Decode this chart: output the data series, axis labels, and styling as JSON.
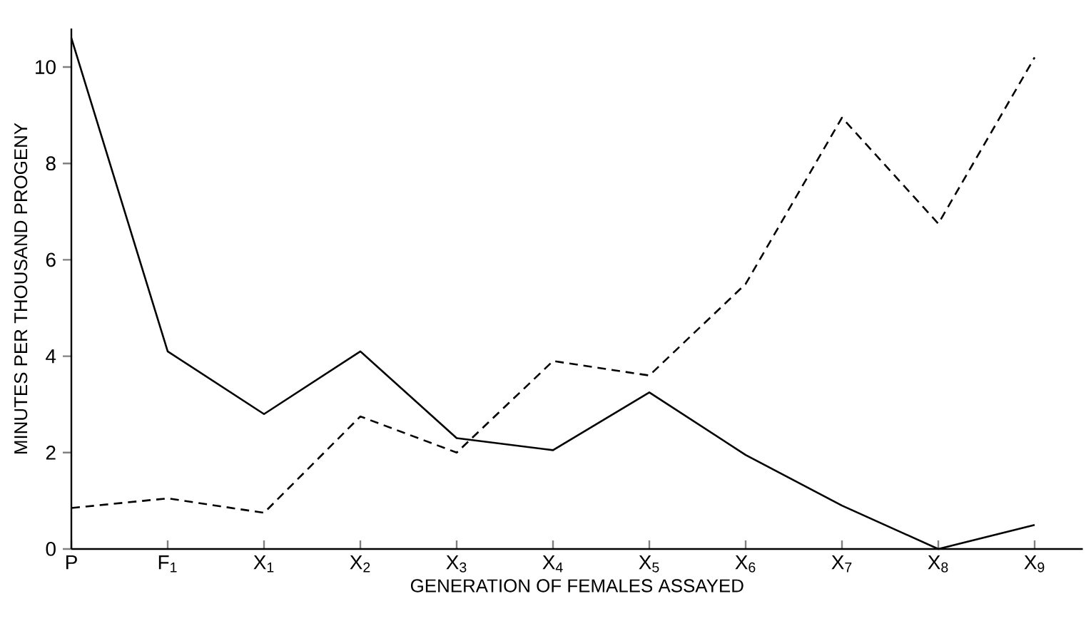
{
  "chart_data": {
    "type": "line",
    "xlabel": "GENERATION OF FEMALES ASSAYED",
    "ylabel": "MINUTES PER THOUSAND PROGENY",
    "categories": [
      "P",
      "F$_{1}$",
      "X$_{1}$",
      "X$_{2}$",
      "X$_{3}$",
      "X$_{4}$",
      "X$_{5}$",
      "X$_{6}$",
      "X$_{7}$",
      "X$_{8}$",
      "X$_{9}$"
    ],
    "series": [
      {
        "color": "#000000",
        "line_style": "solid",
        "values": [
          10.6,
          4.1,
          2.8,
          4.1,
          2.3,
          2.05,
          3.25,
          1.95,
          0.9,
          0,
          0.5
        ]
      },
      {
        "color": "#000000",
        "line_style": "dashed",
        "values": [
          0.85,
          1.05,
          0.75,
          2.75,
          2.0,
          3.9,
          3.6,
          5.5,
          8.95,
          6.75,
          10.2
        ]
      }
    ],
    "ylim": [
      0,
      10.8
    ],
    "yticks": [
      0,
      2,
      4,
      6,
      8,
      10
    ],
    "grid": false,
    "marker": "none"
  }
}
